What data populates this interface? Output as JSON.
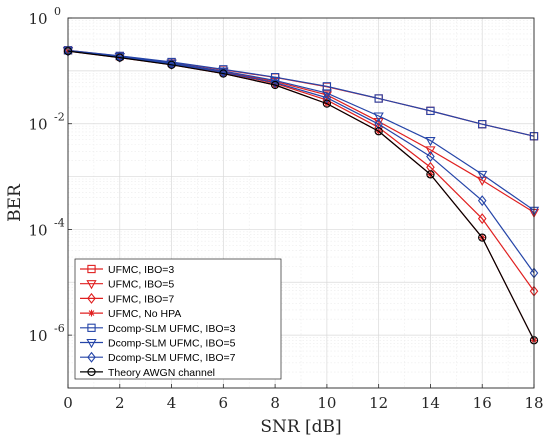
{
  "chart_data": {
    "type": "line",
    "xlabel": "SNR [dB]",
    "ylabel": "BER",
    "xlim": [
      0,
      18
    ],
    "ylim": [
      1e-07,
      1
    ],
    "yscale": "log",
    "grid": true,
    "legend_position": "bottom-left",
    "x": [
      0,
      2,
      4,
      6,
      8,
      10,
      12,
      14,
      16,
      18
    ],
    "x_ticks": [
      "0",
      "2",
      "4",
      "6",
      "8",
      "10",
      "12",
      "14",
      "16",
      "18"
    ],
    "y_ticks": [
      {
        "base": "10",
        "exp": "0",
        "value": 1
      },
      {
        "base": "10",
        "exp": "-2",
        "value": 0.01
      },
      {
        "base": "10",
        "exp": "-4",
        "value": 0.0001
      },
      {
        "base": "10",
        "exp": "-6",
        "value": 1e-06
      }
    ],
    "series": [
      {
        "name": "UFMC, IBO=3",
        "color": "#e02020",
        "marker": "square",
        "values": [
          0.245,
          0.19,
          0.145,
          0.105,
          0.075,
          0.05,
          0.03,
          0.0175,
          0.0098,
          0.0058
        ]
      },
      {
        "name": "UFMC, IBO=5",
        "color": "#e02020",
        "marker": "triangle-down",
        "values": [
          0.24,
          0.185,
          0.138,
          0.097,
          0.063,
          0.035,
          0.011,
          0.0032,
          0.00085,
          0.00021
        ]
      },
      {
        "name": "UFMC, IBO=7",
        "color": "#e02020",
        "marker": "diamond",
        "values": [
          0.238,
          0.182,
          0.134,
          0.093,
          0.058,
          0.028,
          0.0085,
          0.0015,
          0.00016,
          6.8e-06
        ]
      },
      {
        "name": "UFMC, No HPA",
        "color": "#e02020",
        "marker": "star",
        "values": [
          0.236,
          0.178,
          0.13,
          0.089,
          0.054,
          0.024,
          0.0072,
          0.0011,
          7e-05,
          8e-07
        ]
      },
      {
        "name": "Dcomp-SLM UFMC, IBO=3",
        "color": "#2545a8",
        "marker": "square",
        "values": [
          0.245,
          0.192,
          0.147,
          0.107,
          0.076,
          0.051,
          0.03,
          0.0175,
          0.0098,
          0.0058
        ]
      },
      {
        "name": "Dcomp-SLM UFMC, IBO=5",
        "color": "#2545a8",
        "marker": "triangle-down",
        "values": [
          0.24,
          0.187,
          0.14,
          0.099,
          0.066,
          0.038,
          0.014,
          0.0048,
          0.0011,
          0.00023
        ]
      },
      {
        "name": "Dcomp-SLM UFMC, IBO=7",
        "color": "#2545a8",
        "marker": "diamond",
        "values": [
          0.238,
          0.183,
          0.135,
          0.094,
          0.06,
          0.031,
          0.0098,
          0.0024,
          0.00035,
          1.5e-05
        ]
      },
      {
        "name": "Theory AWGN channel",
        "color": "#000000",
        "marker": "circle",
        "values": [
          0.236,
          0.178,
          0.13,
          0.089,
          0.054,
          0.024,
          0.0072,
          0.0011,
          7e-05,
          8e-07
        ]
      }
    ]
  }
}
